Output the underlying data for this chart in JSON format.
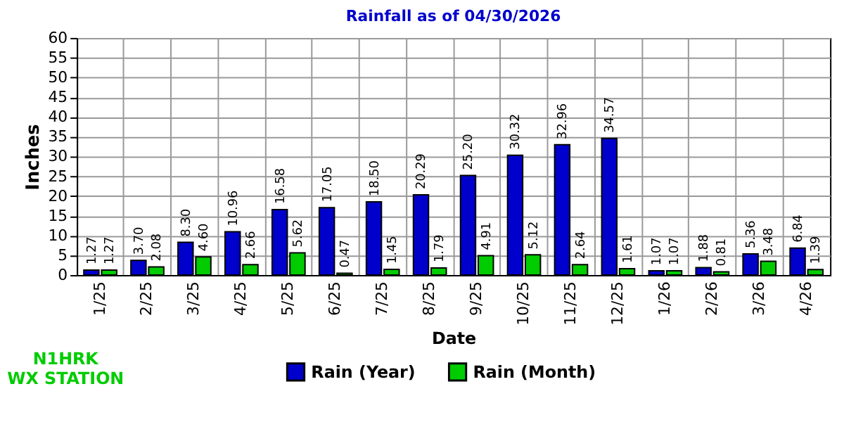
{
  "chart_data": {
    "type": "bar",
    "title": "Rainfall as of 04/30/2026",
    "xlabel": "Date",
    "ylabel": "Inches",
    "categories": [
      "1/25",
      "2/25",
      "3/25",
      "4/25",
      "5/25",
      "6/25",
      "7/25",
      "8/25",
      "9/25",
      "10/25",
      "11/25",
      "12/25",
      "1/26",
      "2/26",
      "3/26",
      "4/26"
    ],
    "series": [
      {
        "name": "Rain (Year)",
        "color": "#0000cc",
        "values": [
          1.27,
          3.7,
          8.3,
          10.96,
          16.58,
          17.05,
          18.5,
          20.29,
          25.2,
          30.32,
          32.96,
          34.57,
          1.07,
          1.88,
          5.36,
          6.84
        ],
        "value_labels": [
          "1.27",
          "3.70",
          "8.30",
          "10.96",
          "16.58",
          "17.05",
          "18.50",
          "20.29",
          "25.20",
          "30.32",
          "32.96",
          "34.57",
          "1.07",
          "1.88",
          "5.36",
          "6.84"
        ]
      },
      {
        "name": "Rain (Month)",
        "color": "#00cc00",
        "values": [
          1.27,
          2.08,
          4.6,
          2.66,
          5.62,
          0.47,
          1.45,
          1.79,
          4.91,
          5.12,
          2.64,
          1.61,
          1.07,
          0.81,
          3.48,
          1.39
        ],
        "value_labels": [
          "1.27",
          "2.08",
          "4.60",
          "2.66",
          "5.62",
          "0.47",
          "1.45",
          "1.79",
          "4.91",
          "5.12",
          "2.64",
          "1.61",
          "1.07",
          "0.81",
          "3.48",
          "1.39"
        ]
      }
    ],
    "ylim": [
      0,
      60
    ],
    "yticks": [
      0,
      5,
      10,
      15,
      20,
      25,
      30,
      35,
      40,
      45,
      50,
      55,
      60
    ],
    "grid": true,
    "legend": "bottom",
    "annotations": [
      "N1HRK WX STATION"
    ]
  }
}
